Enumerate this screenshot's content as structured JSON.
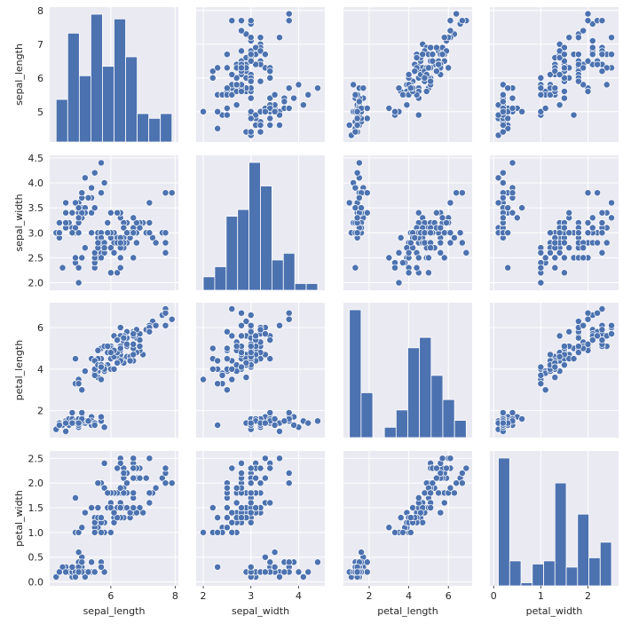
{
  "chart_data": {
    "type": "pairplot",
    "variables": [
      "sepal_length",
      "sepal_width",
      "petal_length",
      "petal_width"
    ],
    "colors": {
      "marker": "#4c72b0",
      "marker_edge": "#ffffff",
      "panel_bg": "#eaeaf2",
      "grid": "#ffffff"
    },
    "grid": true,
    "axes": {
      "sepal_length": {
        "range": [
          4.1,
          8.1
        ],
        "ticks": [
          5,
          6,
          7,
          8
        ],
        "x_ticks": [
          6,
          8
        ]
      },
      "sepal_width": {
        "range": [
          1.85,
          4.55
        ],
        "ticks": [
          2.0,
          2.5,
          3.0,
          3.5,
          4.0,
          4.5
        ],
        "x_ticks": [
          2,
          3,
          4
        ]
      },
      "petal_length": {
        "range": [
          0.7,
          7.2
        ],
        "ticks": [
          2,
          4,
          6
        ],
        "x_ticks": [
          2,
          4,
          6
        ]
      },
      "petal_width": {
        "range": [
          -0.08,
          2.65
        ],
        "ticks": [
          0.0,
          0.5,
          1.0,
          1.5,
          2.0,
          2.5
        ],
        "x_ticks": [
          0,
          1,
          2
        ]
      }
    },
    "histograms": {
      "sepal_length": {
        "bin_edges": [
          4.3,
          4.66,
          5.02,
          5.38,
          5.74,
          6.1,
          6.46,
          6.82,
          7.18,
          7.54,
          7.9
        ],
        "counts": [
          9,
          23,
          14,
          27,
          16,
          26,
          18,
          6,
          5,
          6
        ]
      },
      "sepal_width": {
        "bin_edges": [
          2.0,
          2.24,
          2.48,
          2.72,
          2.96,
          3.2,
          3.44,
          3.68,
          3.92,
          4.16,
          4.4
        ],
        "counts": [
          4,
          7,
          22,
          24,
          38,
          31,
          9,
          11,
          2,
          2
        ]
      },
      "petal_length": {
        "bin_edges": [
          1.0,
          1.59,
          2.18,
          2.77,
          3.36,
          3.95,
          4.54,
          5.13,
          5.72,
          6.31,
          6.9
        ],
        "counts": [
          37,
          13,
          0,
          3,
          8,
          26,
          29,
          18,
          11,
          5
        ]
      },
      "petal_width": {
        "bin_edges": [
          0.1,
          0.34,
          0.58,
          0.82,
          1.06,
          1.3,
          1.54,
          1.78,
          2.02,
          2.26,
          2.5
        ],
        "counts": [
          41,
          8,
          1,
          7,
          8,
          33,
          6,
          23,
          9,
          14
        ]
      }
    },
    "points": [
      [
        5.1,
        3.5,
        1.4,
        0.2
      ],
      [
        4.9,
        3.0,
        1.4,
        0.2
      ],
      [
        4.7,
        3.2,
        1.3,
        0.2
      ],
      [
        4.6,
        3.1,
        1.5,
        0.2
      ],
      [
        5.0,
        3.6,
        1.4,
        0.2
      ],
      [
        5.4,
        3.9,
        1.7,
        0.4
      ],
      [
        4.6,
        3.4,
        1.4,
        0.3
      ],
      [
        5.0,
        3.4,
        1.5,
        0.2
      ],
      [
        4.4,
        2.9,
        1.4,
        0.2
      ],
      [
        4.9,
        3.1,
        1.5,
        0.1
      ],
      [
        5.4,
        3.7,
        1.5,
        0.2
      ],
      [
        4.8,
        3.4,
        1.6,
        0.2
      ],
      [
        4.8,
        3.0,
        1.4,
        0.1
      ],
      [
        4.3,
        3.0,
        1.1,
        0.1
      ],
      [
        5.8,
        4.0,
        1.2,
        0.2
      ],
      [
        5.7,
        4.4,
        1.5,
        0.4
      ],
      [
        5.4,
        3.9,
        1.3,
        0.4
      ],
      [
        5.1,
        3.5,
        1.4,
        0.3
      ],
      [
        5.7,
        3.8,
        1.7,
        0.3
      ],
      [
        5.1,
        3.8,
        1.5,
        0.3
      ],
      [
        5.4,
        3.4,
        1.7,
        0.2
      ],
      [
        5.1,
        3.7,
        1.5,
        0.4
      ],
      [
        4.6,
        3.6,
        1.0,
        0.2
      ],
      [
        5.1,
        3.3,
        1.7,
        0.5
      ],
      [
        4.8,
        3.4,
        1.9,
        0.2
      ],
      [
        5.0,
        3.0,
        1.6,
        0.2
      ],
      [
        5.0,
        3.4,
        1.6,
        0.4
      ],
      [
        5.2,
        3.5,
        1.5,
        0.2
      ],
      [
        5.2,
        3.4,
        1.4,
        0.2
      ],
      [
        4.7,
        3.2,
        1.6,
        0.2
      ],
      [
        4.8,
        3.1,
        1.6,
        0.2
      ],
      [
        5.4,
        3.4,
        1.5,
        0.4
      ],
      [
        5.2,
        4.1,
        1.5,
        0.1
      ],
      [
        5.5,
        4.2,
        1.4,
        0.2
      ],
      [
        4.9,
        3.1,
        1.5,
        0.2
      ],
      [
        5.0,
        3.2,
        1.2,
        0.2
      ],
      [
        5.5,
        3.5,
        1.3,
        0.2
      ],
      [
        4.9,
        3.6,
        1.4,
        0.1
      ],
      [
        4.4,
        3.0,
        1.3,
        0.2
      ],
      [
        5.1,
        3.4,
        1.5,
        0.2
      ],
      [
        5.0,
        3.5,
        1.3,
        0.3
      ],
      [
        4.5,
        2.3,
        1.3,
        0.3
      ],
      [
        4.4,
        3.2,
        1.3,
        0.2
      ],
      [
        5.0,
        3.5,
        1.6,
        0.6
      ],
      [
        5.1,
        3.8,
        1.9,
        0.4
      ],
      [
        4.8,
        3.0,
        1.4,
        0.3
      ],
      [
        5.1,
        3.8,
        1.6,
        0.2
      ],
      [
        4.6,
        3.2,
        1.4,
        0.2
      ],
      [
        5.3,
        3.7,
        1.5,
        0.2
      ],
      [
        5.0,
        3.3,
        1.4,
        0.2
      ],
      [
        7.0,
        3.2,
        4.7,
        1.4
      ],
      [
        6.4,
        3.2,
        4.5,
        1.5
      ],
      [
        6.9,
        3.1,
        4.9,
        1.5
      ],
      [
        5.5,
        2.3,
        4.0,
        1.3
      ],
      [
        6.5,
        2.8,
        4.6,
        1.5
      ],
      [
        5.7,
        2.8,
        4.5,
        1.3
      ],
      [
        6.3,
        3.3,
        4.7,
        1.6
      ],
      [
        4.9,
        2.4,
        3.3,
        1.0
      ],
      [
        6.6,
        2.9,
        4.6,
        1.3
      ],
      [
        5.2,
        2.7,
        3.9,
        1.4
      ],
      [
        5.0,
        2.0,
        3.5,
        1.0
      ],
      [
        5.9,
        3.0,
        4.2,
        1.5
      ],
      [
        6.0,
        2.2,
        4.0,
        1.0
      ],
      [
        6.1,
        2.9,
        4.7,
        1.4
      ],
      [
        5.6,
        2.9,
        3.6,
        1.3
      ],
      [
        6.7,
        3.1,
        4.4,
        1.4
      ],
      [
        5.6,
        3.0,
        4.5,
        1.5
      ],
      [
        5.8,
        2.7,
        4.1,
        1.0
      ],
      [
        6.2,
        2.2,
        4.5,
        1.5
      ],
      [
        5.6,
        2.5,
        3.9,
        1.1
      ],
      [
        5.9,
        3.2,
        4.8,
        1.8
      ],
      [
        6.1,
        2.8,
        4.0,
        1.3
      ],
      [
        6.3,
        2.5,
        4.9,
        1.5
      ],
      [
        6.1,
        2.8,
        4.7,
        1.2
      ],
      [
        6.4,
        2.9,
        4.3,
        1.3
      ],
      [
        6.6,
        3.0,
        4.4,
        1.4
      ],
      [
        6.8,
        2.8,
        4.8,
        1.4
      ],
      [
        6.7,
        3.0,
        5.0,
        1.7
      ],
      [
        6.0,
        2.9,
        4.5,
        1.5
      ],
      [
        5.7,
        2.6,
        3.5,
        1.0
      ],
      [
        5.5,
        2.4,
        3.8,
        1.1
      ],
      [
        5.5,
        2.4,
        3.7,
        1.0
      ],
      [
        5.8,
        2.7,
        3.9,
        1.2
      ],
      [
        6.0,
        2.7,
        5.1,
        1.6
      ],
      [
        5.4,
        3.0,
        4.5,
        1.5
      ],
      [
        6.0,
        3.4,
        4.5,
        1.6
      ],
      [
        6.7,
        3.1,
        4.7,
        1.5
      ],
      [
        6.3,
        2.3,
        4.4,
        1.3
      ],
      [
        5.6,
        3.0,
        4.1,
        1.3
      ],
      [
        5.5,
        2.5,
        4.0,
        1.3
      ],
      [
        5.5,
        2.6,
        4.4,
        1.2
      ],
      [
        6.1,
        3.0,
        4.6,
        1.4
      ],
      [
        5.8,
        2.6,
        4.0,
        1.2
      ],
      [
        5.0,
        2.3,
        3.3,
        1.0
      ],
      [
        5.6,
        2.7,
        4.2,
        1.3
      ],
      [
        5.7,
        3.0,
        4.2,
        1.2
      ],
      [
        5.7,
        2.9,
        4.2,
        1.3
      ],
      [
        6.2,
        2.9,
        4.3,
        1.3
      ],
      [
        5.1,
        2.5,
        3.0,
        1.1
      ],
      [
        5.7,
        2.8,
        4.1,
        1.3
      ],
      [
        6.3,
        3.3,
        6.0,
        2.5
      ],
      [
        5.8,
        2.7,
        5.1,
        1.9
      ],
      [
        7.1,
        3.0,
        5.9,
        2.1
      ],
      [
        6.3,
        2.9,
        5.6,
        1.8
      ],
      [
        6.5,
        3.0,
        5.8,
        2.2
      ],
      [
        7.6,
        3.0,
        6.6,
        2.1
      ],
      [
        4.9,
        2.5,
        4.5,
        1.7
      ],
      [
        7.3,
        2.9,
        6.3,
        1.8
      ],
      [
        6.7,
        2.5,
        5.8,
        1.8
      ],
      [
        7.2,
        3.6,
        6.1,
        2.5
      ],
      [
        6.5,
        3.2,
        5.1,
        2.0
      ],
      [
        6.4,
        2.7,
        5.3,
        1.9
      ],
      [
        6.8,
        3.0,
        5.5,
        2.1
      ],
      [
        5.7,
        2.5,
        5.0,
        2.0
      ],
      [
        5.8,
        2.8,
        5.1,
        2.4
      ],
      [
        6.4,
        3.2,
        5.3,
        2.3
      ],
      [
        6.5,
        3.0,
        5.5,
        1.8
      ],
      [
        7.7,
        3.8,
        6.7,
        2.2
      ],
      [
        7.7,
        2.6,
        6.9,
        2.3
      ],
      [
        6.0,
        2.2,
        5.0,
        1.5
      ],
      [
        6.9,
        3.2,
        5.7,
        2.3
      ],
      [
        5.6,
        2.8,
        4.9,
        2.0
      ],
      [
        7.7,
        2.8,
        6.7,
        2.0
      ],
      [
        6.3,
        2.7,
        4.9,
        1.8
      ],
      [
        6.7,
        3.3,
        5.7,
        2.1
      ],
      [
        7.2,
        3.2,
        6.0,
        1.8
      ],
      [
        6.2,
        2.8,
        4.8,
        1.8
      ],
      [
        6.1,
        3.0,
        4.9,
        1.8
      ],
      [
        6.4,
        2.8,
        5.6,
        2.1
      ],
      [
        7.2,
        3.0,
        5.8,
        1.6
      ],
      [
        7.4,
        2.8,
        6.1,
        1.9
      ],
      [
        7.9,
        3.8,
        6.4,
        2.0
      ],
      [
        6.4,
        2.8,
        5.6,
        2.2
      ],
      [
        6.3,
        2.8,
        5.1,
        1.5
      ],
      [
        6.1,
        2.6,
        5.6,
        1.4
      ],
      [
        7.7,
        3.0,
        6.1,
        2.3
      ],
      [
        6.3,
        3.4,
        5.6,
        2.4
      ],
      [
        6.4,
        3.1,
        5.5,
        1.8
      ],
      [
        6.0,
        3.0,
        4.8,
        1.8
      ],
      [
        6.9,
        3.1,
        5.4,
        2.1
      ],
      [
        6.7,
        3.1,
        5.6,
        2.4
      ],
      [
        6.9,
        3.1,
        5.1,
        2.3
      ],
      [
        5.8,
        2.7,
        5.1,
        1.9
      ],
      [
        6.8,
        3.2,
        5.9,
        2.3
      ],
      [
        6.7,
        3.3,
        5.7,
        2.5
      ],
      [
        6.7,
        3.0,
        5.2,
        2.3
      ],
      [
        6.3,
        2.5,
        5.0,
        1.9
      ],
      [
        6.5,
        3.0,
        5.2,
        2.0
      ],
      [
        6.2,
        3.4,
        5.4,
        2.3
      ],
      [
        5.9,
        3.0,
        5.1,
        1.8
      ]
    ]
  }
}
